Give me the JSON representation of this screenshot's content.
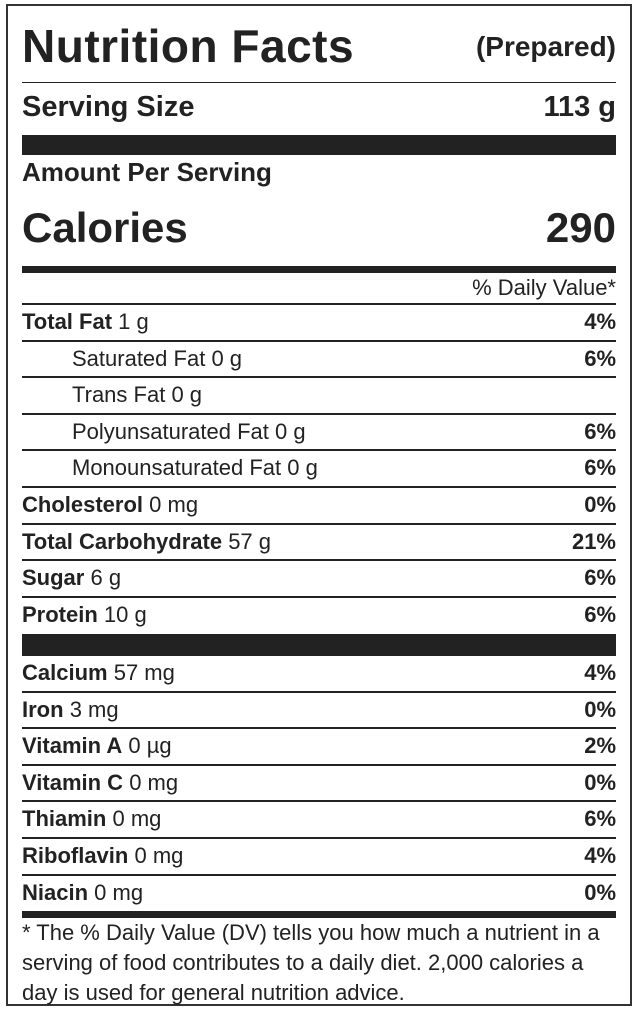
{
  "header": {
    "title": "Nutrition Facts",
    "subtitle": "(Prepared)"
  },
  "serving": {
    "label": "Serving Size",
    "value": "113 g"
  },
  "amount_per_serving": "Amount Per Serving",
  "calories": {
    "label": "Calories",
    "value": "290"
  },
  "daily_value_header": "% Daily Value*",
  "nutrients": [
    {
      "name": "Total Fat",
      "amount": "1 g",
      "dv": "4%"
    },
    {
      "name": "Saturated Fat",
      "amount": "0 g",
      "dv": "6%"
    },
    {
      "name": "Trans Fat",
      "amount": "0 g",
      "dv": ""
    },
    {
      "name": "Polyunsaturated Fat",
      "amount": "0 g",
      "dv": "6%"
    },
    {
      "name": "Monounsaturated Fat",
      "amount": "0 g",
      "dv": "6%"
    },
    {
      "name": "Cholesterol",
      "amount": "0 mg",
      "dv": "0%"
    },
    {
      "name": "Total Carbohydrate",
      "amount": "57 g",
      "dv": "21%"
    },
    {
      "name": "Sugar",
      "amount": "6 g",
      "dv": "6%"
    },
    {
      "name": "Protein",
      "amount": "10 g",
      "dv": "6%"
    }
  ],
  "vitamins": [
    {
      "name": "Calcium",
      "amount": "57 mg",
      "dv": "4%"
    },
    {
      "name": "Iron",
      "amount": "3 mg",
      "dv": "0%"
    },
    {
      "name": "Vitamin A",
      "amount": "0 µg",
      "dv": "2%"
    },
    {
      "name": "Vitamin C",
      "amount": "0 mg",
      "dv": "0%"
    },
    {
      "name": "Thiamin",
      "amount": "0 mg",
      "dv": "6%"
    },
    {
      "name": "Riboflavin",
      "amount": "0 mg",
      "dv": "4%"
    },
    {
      "name": "Niacin",
      "amount": "0 mg",
      "dv": "0%"
    }
  ],
  "footnote": "* The % Daily Value (DV) tells you how much a nutrient in a serving of food contributes to a daily diet. 2,000 calories a day is used for general nutrition advice."
}
